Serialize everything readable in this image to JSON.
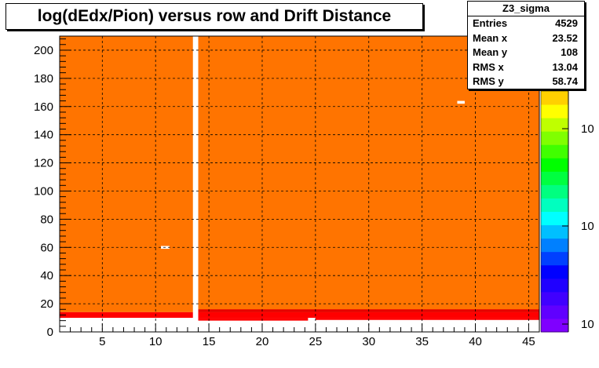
{
  "histogram_name": "Z3_sigma",
  "stats": [
    {
      "label": "Entries",
      "value": "4529"
    },
    {
      "label": "Mean x",
      "value": "23.52"
    },
    {
      "label": "Mean y",
      "value": "108"
    },
    {
      "label": "RMS x",
      "value": "13.04"
    },
    {
      "label": "RMS y",
      "value": "58.74"
    }
  ],
  "chart_data": {
    "type": "heatmap",
    "title": "log(dEdx/Pion) versus row and Drift Distance",
    "xlabel": "",
    "ylabel": "",
    "xlim": [
      1,
      46
    ],
    "ylim": [
      0,
      210
    ],
    "x_ticks": [
      5,
      10,
      15,
      20,
      25,
      30,
      35,
      40,
      45
    ],
    "y_ticks": [
      0,
      20,
      40,
      60,
      80,
      100,
      120,
      140,
      160,
      180,
      200
    ],
    "grid": true,
    "colors": {
      "fill": "#ff7400",
      "band": "#ff0000",
      "dark_band": "#e60000",
      "empty": "#ffffff"
    },
    "palette": [
      "#7f00ff",
      "#6000ff",
      "#4000ff",
      "#2000ff",
      "#0000ff",
      "#0040ff",
      "#0080ff",
      "#00bfff",
      "#00ffff",
      "#00ffbf",
      "#00ff80",
      "#00ff40",
      "#00ff00",
      "#40ff00",
      "#80ff00",
      "#bfff00",
      "#ffff00",
      "#ffd000"
    ],
    "palette_tick_labels": [
      "10",
      "10",
      "10"
    ],
    "empty_column_x": [
      13.5,
      14
    ],
    "empty_cells": [
      {
        "x": [
          10.5,
          11.3
        ],
        "y": [
          59,
          61
        ]
      },
      {
        "x": [
          38.3,
          39.0
        ],
        "y": [
          162,
          164
        ]
      }
    ]
  }
}
